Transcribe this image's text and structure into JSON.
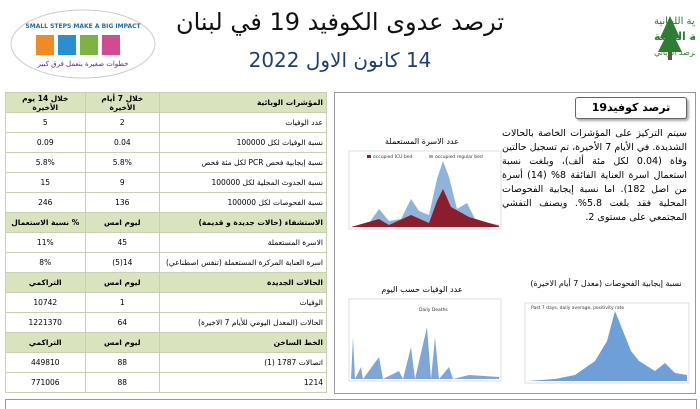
{
  "header": {
    "title": "ترصد عدوى الكوفيد 19 في لبنان",
    "date": "14 كانون الاول 2022",
    "logo_left": {
      "slogan": "SMALL STEPS MAKE A BIG IMPACT",
      "slogan_ar": "خطوات صغيرة بتعمل فرق كبير"
    },
    "logo_right": {
      "line1": "الجمهورية اللبنانية",
      "line2": "وزارة الصحة العامة",
      "line3": "برنامج الترصد الوبائي"
    }
  },
  "table": {
    "sections": [
      {
        "header": [
          "المؤشرات الوبائية",
          "خلال 7 أيام الأخيرة",
          "خلال 14 يوم الأخيرة"
        ],
        "rows": [
          [
            "عدد الوفيات",
            "2",
            "5"
          ],
          [
            "نسبة الوفيات لكل 100000",
            "0.04",
            "0.09"
          ],
          [
            "نسبة إيجابية فحص PCR لكل مئة فحص",
            "5.8%",
            "5.8%"
          ],
          [
            "نسبة الحدوث المحلية لكل 100000",
            "9",
            "15"
          ],
          [
            "نسبة الفحوصات لكل 100000",
            "136",
            "246"
          ]
        ]
      },
      {
        "header": [
          "الاستشفاء (حالات جديدة و قديمة)",
          "ليوم امس",
          "% نسبة الاستعمال"
        ],
        "rows": [
          [
            "الاسرة المستعملة",
            "45",
            "11%"
          ],
          [
            "اسرة العناية المركزة المستعملة (تنفس اصطناعي)",
            "14(5)",
            "8%"
          ]
        ]
      },
      {
        "header": [
          "الحالات الجديدة",
          "ليوم امس",
          "التراكمي"
        ],
        "rows": [
          [
            "الوفيات",
            "1",
            "10742"
          ],
          [
            "الحالات (المعدل اليومي للأيام 7 الاخيرة)",
            "64",
            "1221370"
          ]
        ]
      },
      {
        "header": [
          "الخط الساخن",
          "ليوم امس",
          "التراكمي"
        ],
        "rows": [
          [
            "اتصالات 1787 (1)",
            "88",
            "449810"
          ],
          [
            "1214",
            "88",
            "771006"
          ]
        ]
      }
    ]
  },
  "panel": {
    "title": "ترصد كوفيد19",
    "text": "سيتم التركيز على المؤشرات الخاصة بالحالات الشديدة. في الأيام 7 الأخيرة، تم تسجيل حالتين وفاة (0.04 لكل مئة ألف)، وبلغت نسبة استعمال اسرة العناية الفائقة 8% (14) أسرة من اصل 182). اما نسبة إيجابية الفحوصات المحلية فقد بلغت 5.8%. ويصنف التفشي المجتمعي على مستوى 2.",
    "charts": [
      {
        "title": "عدد الاسرة المستعملة",
        "legend": [
          "occupied ICU bed",
          "occupied regular bed"
        ]
      },
      {
        "title": "عدد الوفيات حسب اليوم",
        "legend": [
          "Daily Deaths"
        ]
      },
      {
        "title": "نسبة إيجابية الفحوصات (معدل 7 أيام الاخيرة)",
        "legend": [
          "Past 7 days, daily average, positivity rate"
        ]
      }
    ]
  }
}
